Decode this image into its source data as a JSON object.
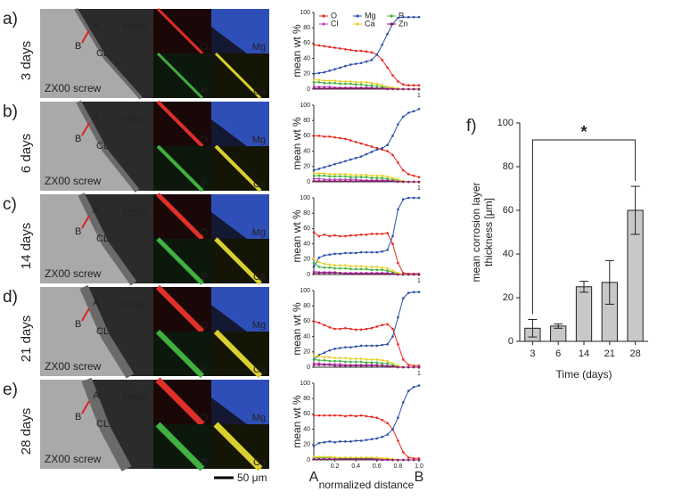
{
  "panels": [
    {
      "label": "a)",
      "time": "3 days",
      "image_texts": [
        "A",
        "B",
        "CL",
        "resin",
        "ZX00 screw",
        "O",
        "Mg",
        "P",
        "Ca"
      ]
    },
    {
      "label": "b)",
      "time": "6 days",
      "image_texts": [
        "A",
        "B",
        "CL",
        "resin",
        "ZX00 screw",
        "O",
        "Mg",
        "P",
        "Ca"
      ]
    },
    {
      "label": "c)",
      "time": "14 days",
      "image_texts": [
        "A",
        "B",
        "CL",
        "resin",
        "ZX00 screw",
        "O",
        "Mg",
        "P",
        "Ca"
      ]
    },
    {
      "label": "d)",
      "time": "21 days",
      "image_texts": [
        "A",
        "B",
        "CL",
        "resin",
        "ZX00 screw",
        "O",
        "Mg",
        "P",
        "Ca"
      ]
    },
    {
      "label": "e)",
      "time": "28 days",
      "image_texts": [
        "A",
        "B",
        "CL",
        "resin",
        "ZX00 screw",
        "O",
        "Mg",
        "P",
        "Ca"
      ]
    }
  ],
  "scale_bar": "50 μm",
  "chart_data": [
    {
      "type": "line",
      "ylabel": "mean wt %",
      "xlim": [
        0,
        1
      ],
      "ylim": [
        0,
        100
      ],
      "yticks": [
        0,
        20,
        40,
        60,
        80,
        100
      ],
      "xticks": [
        1
      ],
      "x": [
        0,
        0.05,
        0.1,
        0.15,
        0.2,
        0.25,
        0.3,
        0.35,
        0.4,
        0.45,
        0.5,
        0.55,
        0.6,
        0.65,
        0.7,
        0.75,
        0.8,
        0.85,
        0.9,
        0.95,
        1
      ],
      "series": [
        {
          "name": "O",
          "color": "#e8261c",
          "values": [
            58,
            57,
            56,
            55,
            54,
            53,
            52,
            51,
            50,
            50,
            49,
            48,
            45,
            38,
            28,
            18,
            10,
            6,
            5,
            5,
            5
          ]
        },
        {
          "name": "Mg",
          "color": "#2a4fa8",
          "values": [
            20,
            21,
            22,
            24,
            26,
            28,
            30,
            32,
            33,
            34,
            36,
            38,
            45,
            58,
            72,
            85,
            93,
            94,
            94,
            94,
            94
          ]
        },
        {
          "name": "P",
          "color": "#3cb43c",
          "values": [
            9,
            9,
            8,
            8,
            8,
            7,
            7,
            7,
            6,
            6,
            5,
            5,
            4,
            3,
            2,
            1,
            0,
            0,
            0,
            0,
            0
          ]
        },
        {
          "name": "Cl",
          "color": "#c040c0",
          "values": [
            3,
            3,
            3,
            3,
            2,
            2,
            2,
            2,
            2,
            2,
            2,
            2,
            1,
            1,
            1,
            1,
            0,
            0,
            0,
            0,
            0
          ]
        },
        {
          "name": "Ca",
          "color": "#e8d020",
          "values": [
            12,
            12,
            11,
            11,
            11,
            10,
            10,
            10,
            9,
            9,
            9,
            8,
            7,
            5,
            3,
            2,
            1,
            0,
            0,
            0,
            0
          ]
        },
        {
          "name": "Zn",
          "color": "#8b1a6b",
          "values": [
            1,
            1,
            1,
            1,
            1,
            1,
            1,
            1,
            1,
            1,
            1,
            1,
            1,
            1,
            0,
            0,
            0,
            0,
            0,
            0,
            0
          ]
        }
      ]
    },
    {
      "type": "line",
      "ylabel": "mean wt %",
      "xlim": [
        0,
        1
      ],
      "ylim": [
        0,
        100
      ],
      "yticks": [
        0,
        20,
        40,
        60,
        80,
        100
      ],
      "xticks": [
        1
      ],
      "x": [
        0,
        0.05,
        0.1,
        0.15,
        0.2,
        0.25,
        0.3,
        0.35,
        0.4,
        0.45,
        0.5,
        0.55,
        0.6,
        0.65,
        0.7,
        0.75,
        0.8,
        0.85,
        0.9,
        0.95,
        1
      ],
      "series": [
        {
          "color": "#e8261c",
          "values": [
            60,
            60,
            59,
            59,
            58,
            57,
            56,
            54,
            52,
            50,
            48,
            46,
            44,
            42,
            40,
            35,
            25,
            15,
            10,
            8,
            6
          ]
        },
        {
          "color": "#2a4fa8",
          "values": [
            15,
            17,
            19,
            21,
            23,
            25,
            27,
            29,
            31,
            33,
            36,
            39,
            42,
            44,
            48,
            60,
            75,
            85,
            90,
            92,
            95
          ]
        },
        {
          "color": "#3cb43c",
          "values": [
            8,
            8,
            8,
            7,
            7,
            7,
            7,
            6,
            6,
            6,
            6,
            5,
            5,
            5,
            4,
            3,
            2,
            1,
            0,
            0,
            0
          ]
        },
        {
          "color": "#c040c0",
          "values": [
            4,
            4,
            3,
            3,
            3,
            3,
            3,
            3,
            3,
            2,
            2,
            2,
            2,
            2,
            2,
            1,
            1,
            0,
            0,
            0,
            0
          ]
        },
        {
          "color": "#e8d020",
          "values": [
            11,
            11,
            11,
            10,
            10,
            10,
            10,
            9,
            9,
            9,
            9,
            8,
            8,
            8,
            7,
            5,
            3,
            1,
            0,
            0,
            0
          ]
        },
        {
          "color": "#8b1a6b",
          "values": [
            1,
            1,
            1,
            1,
            1,
            1,
            1,
            1,
            1,
            1,
            1,
            1,
            1,
            1,
            1,
            1,
            0,
            0,
            0,
            0,
            0
          ]
        }
      ]
    },
    {
      "type": "line",
      "ylabel": "mean wt %",
      "xlim": [
        0,
        1
      ],
      "ylim": [
        0,
        100
      ],
      "yticks": [
        0,
        20,
        40,
        60,
        80,
        100
      ],
      "xticks": [
        1
      ],
      "x": [
        0,
        0.05,
        0.1,
        0.15,
        0.2,
        0.25,
        0.3,
        0.35,
        0.4,
        0.45,
        0.5,
        0.55,
        0.6,
        0.65,
        0.7,
        0.75,
        0.8,
        0.85,
        0.9,
        0.95,
        1
      ],
      "series": [
        {
          "color": "#e8261c",
          "values": [
            55,
            50,
            52,
            50,
            51,
            50,
            50,
            51,
            51,
            52,
            52,
            53,
            53,
            53,
            54,
            40,
            15,
            2,
            1,
            1,
            1
          ]
        },
        {
          "color": "#2a4fa8",
          "values": [
            10,
            22,
            25,
            26,
            27,
            27,
            28,
            28,
            28,
            29,
            29,
            29,
            29,
            30,
            32,
            50,
            85,
            98,
            100,
            100,
            100
          ]
        },
        {
          "color": "#3cb43c",
          "values": [
            15,
            10,
            9,
            9,
            8,
            8,
            8,
            7,
            7,
            7,
            7,
            6,
            6,
            6,
            5,
            3,
            1,
            0,
            0,
            0,
            0
          ]
        },
        {
          "color": "#c040c0",
          "values": [
            4,
            3,
            3,
            3,
            3,
            2,
            2,
            2,
            2,
            2,
            2,
            2,
            2,
            2,
            2,
            1,
            0,
            0,
            0,
            0,
            0
          ]
        },
        {
          "color": "#e8d020",
          "values": [
            20,
            16,
            14,
            13,
            12,
            12,
            12,
            11,
            11,
            11,
            10,
            10,
            10,
            9,
            8,
            5,
            2,
            0,
            0,
            0,
            0
          ]
        },
        {
          "color": "#8b1a6b",
          "values": [
            2,
            2,
            2,
            2,
            2,
            2,
            1,
            1,
            1,
            1,
            1,
            1,
            1,
            1,
            1,
            1,
            0,
            0,
            0,
            0,
            0
          ]
        }
      ]
    },
    {
      "type": "line",
      "ylabel": "mean wt %",
      "xlim": [
        0,
        1
      ],
      "ylim": [
        0,
        100
      ],
      "yticks": [
        0,
        20,
        40,
        60,
        80,
        100
      ],
      "xticks": [
        1
      ],
      "x": [
        0,
        0.05,
        0.1,
        0.15,
        0.2,
        0.25,
        0.3,
        0.35,
        0.4,
        0.45,
        0.5,
        0.55,
        0.6,
        0.65,
        0.7,
        0.75,
        0.8,
        0.85,
        0.9,
        0.95,
        1
      ],
      "series": [
        {
          "color": "#e8261c",
          "values": [
            60,
            58,
            55,
            52,
            50,
            50,
            51,
            50,
            49,
            49,
            50,
            51,
            53,
            55,
            56,
            50,
            30,
            10,
            3,
            2,
            2
          ]
        },
        {
          "color": "#2a4fa8",
          "values": [
            10,
            16,
            19,
            22,
            24,
            25,
            26,
            26,
            27,
            28,
            28,
            28,
            28,
            29,
            30,
            40,
            65,
            90,
            97,
            98,
            98
          ]
        },
        {
          "color": "#3cb43c",
          "values": [
            10,
            9,
            9,
            8,
            8,
            8,
            7,
            7,
            7,
            7,
            6,
            6,
            6,
            5,
            5,
            3,
            1,
            0,
            0,
            0,
            0
          ]
        },
        {
          "color": "#c040c0",
          "values": [
            5,
            5,
            4,
            4,
            4,
            4,
            3,
            3,
            3,
            3,
            3,
            3,
            3,
            2,
            2,
            1,
            0,
            0,
            0,
            0,
            0
          ]
        },
        {
          "color": "#e8d020",
          "values": [
            15,
            14,
            13,
            13,
            12,
            12,
            12,
            11,
            11,
            11,
            10,
            10,
            10,
            9,
            8,
            5,
            2,
            0,
            0,
            0,
            0
          ]
        },
        {
          "color": "#8b1a6b",
          "values": [
            3,
            3,
            3,
            3,
            2,
            2,
            2,
            2,
            2,
            2,
            2,
            2,
            2,
            2,
            1,
            1,
            0,
            0,
            0,
            0,
            0
          ]
        }
      ]
    },
    {
      "type": "line",
      "ylabel": "mean wt %",
      "xlabel": "normalized distance",
      "x_end_labels": [
        "A",
        "B"
      ],
      "xlim": [
        0,
        1
      ],
      "ylim": [
        0,
        100
      ],
      "yticks": [
        0,
        20,
        40,
        60,
        80,
        100
      ],
      "xticks": [
        0.2,
        0.4,
        0.6,
        0.8,
        {
          "value": 1,
          "label": "1.0"
        }
      ],
      "x": [
        0,
        0.05,
        0.1,
        0.15,
        0.2,
        0.25,
        0.3,
        0.35,
        0.4,
        0.45,
        0.5,
        0.55,
        0.6,
        0.65,
        0.7,
        0.75,
        0.8,
        0.85,
        0.9,
        0.95,
        1
      ],
      "series": [
        {
          "color": "#e8261c",
          "values": [
            58,
            58,
            58,
            58,
            58,
            58,
            57,
            58,
            57,
            58,
            57,
            56,
            55,
            52,
            48,
            40,
            25,
            10,
            3,
            2,
            2
          ]
        },
        {
          "color": "#2a4fa8",
          "values": [
            18,
            22,
            23,
            24,
            23,
            24,
            24,
            24,
            25,
            25,
            26,
            27,
            28,
            30,
            33,
            40,
            55,
            75,
            90,
            95,
            97
          ]
        },
        {
          "color": "#3cb43c",
          "values": [
            3,
            3,
            3,
            3,
            3,
            2,
            2,
            2,
            2,
            2,
            2,
            2,
            2,
            2,
            1,
            1,
            0,
            0,
            0,
            0,
            0
          ]
        },
        {
          "color": "#c040c0",
          "values": [
            1,
            1,
            1,
            1,
            1,
            1,
            1,
            1,
            1,
            1,
            1,
            1,
            1,
            1,
            1,
            0,
            0,
            0,
            0,
            0,
            0
          ]
        },
        {
          "color": "#e8d020",
          "values": [
            4,
            4,
            4,
            4,
            3,
            3,
            3,
            3,
            3,
            3,
            3,
            3,
            3,
            2,
            2,
            1,
            0,
            0,
            0,
            0,
            0
          ]
        },
        {
          "color": "#8b1a6b",
          "values": [
            1,
            1,
            1,
            1,
            1,
            1,
            1,
            1,
            1,
            1,
            1,
            1,
            0,
            0,
            0,
            0,
            0,
            0,
            0,
            0,
            0
          ]
        }
      ]
    },
    {
      "type": "bar",
      "panel_label": "f)",
      "ylabel": [
        "mean corrosion layer",
        "thickness [μm]"
      ],
      "xlabel": "Time (days)",
      "categories": [
        "3",
        "6",
        "14",
        "21",
        "28"
      ],
      "values": [
        6,
        7,
        25,
        27,
        60
      ],
      "errors": [
        4,
        1,
        2.5,
        10,
        11
      ],
      "color": "#c8c8c8",
      "ylim": [
        0,
        100
      ],
      "yticks": [
        0,
        20,
        40,
        60,
        80,
        100
      ],
      "annotation": "*"
    }
  ]
}
